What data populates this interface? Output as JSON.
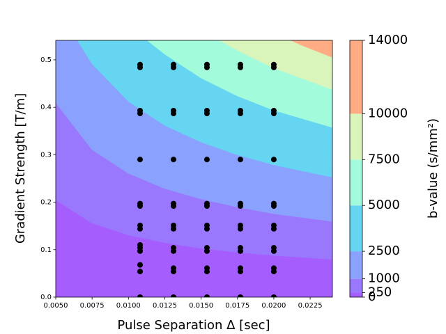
{
  "chart_data": {
    "type": "contour",
    "xlabel": "Pulse Separation Δ [sec]",
    "ylabel": "Gradient Strength [T/m]",
    "xlim": [
      0.005,
      0.02403
    ],
    "ylim": [
      0,
      0.541
    ],
    "xticks": [
      {
        "value": 0.005,
        "label": "0.0050"
      },
      {
        "value": 0.0075,
        "label": "0.0075"
      },
      {
        "value": 0.01,
        "label": "0.0100"
      },
      {
        "value": 0.0125,
        "label": "0.0125"
      },
      {
        "value": 0.015,
        "label": "0.0150"
      },
      {
        "value": 0.0175,
        "label": "0.0175"
      },
      {
        "value": 0.02,
        "label": "0.0200"
      },
      {
        "value": 0.0225,
        "label": "0.0225"
      }
    ],
    "yticks": [
      {
        "value": 0,
        "label": "0.0"
      },
      {
        "value": 0.1,
        "label": "0.1"
      },
      {
        "value": 0.2,
        "label": "0.2"
      },
      {
        "value": 0.3,
        "label": "0.3"
      },
      {
        "value": 0.4,
        "label": "0.4"
      },
      {
        "value": 0.5,
        "label": "0.5"
      }
    ],
    "levels": [
      0,
      250,
      1000,
      2500,
      5000,
      7500,
      10000,
      14000
    ],
    "colors": [
      "#a65dfe",
      "#9a78fd",
      "#8aa2fe",
      "#66d5f1",
      "#a2fbdb",
      "#d9f5bb",
      "#ffab84"
    ],
    "boundaries": [
      {
        "x": [
          0.005,
          0.0075,
          0.01,
          0.0125,
          0.015,
          0.0175,
          0.02,
          0.024
        ],
        "y": [
          0.205,
          0.156,
          0.131,
          0.115,
          0.103,
          0.095,
          0.088,
          0.08
        ]
      },
      {
        "x": [
          0.005,
          0.0075,
          0.01,
          0.0125,
          0.015,
          0.0175,
          0.02,
          0.024
        ],
        "y": [
          0.41,
          0.311,
          0.261,
          0.229,
          0.207,
          0.19,
          0.176,
          0.16
        ]
      },
      {
        "x": [
          0.0065,
          0.0075,
          0.01,
          0.0125,
          0.015,
          0.0175,
          0.02,
          0.024
        ],
        "y": [
          0.541,
          0.492,
          0.413,
          0.362,
          0.327,
          0.3,
          0.279,
          0.253
        ]
      },
      {
        "x": [
          0.0113,
          0.0125,
          0.015,
          0.0175,
          0.02,
          0.024
        ],
        "y": [
          0.541,
          0.512,
          0.462,
          0.424,
          0.394,
          0.358
        ]
      },
      {
        "x": [
          0.0163,
          0.0175,
          0.02,
          0.024
        ],
        "y": [
          0.541,
          0.52,
          0.483,
          0.438
        ]
      },
      {
        "x": [
          0.0212,
          0.022,
          0.024
        ],
        "y": [
          0.541,
          0.53,
          0.506
        ]
      }
    ],
    "points": {
      "color": "#000000",
      "x": [
        0.0108,
        0.0108,
        0.0108,
        0.0108,
        0.0108,
        0.0108,
        0.0108,
        0.0108,
        0.0108,
        0.0108,
        0.0108,
        0.0108,
        0.0108,
        0.0108,
        0.0108,
        0.0131,
        0.0131,
        0.0131,
        0.0131,
        0.0131,
        0.0131,
        0.0131,
        0.0131,
        0.0131,
        0.0131,
        0.0131,
        0.0131,
        0.0131,
        0.0131,
        0.0154,
        0.0154,
        0.0154,
        0.0154,
        0.0154,
        0.0154,
        0.0154,
        0.0154,
        0.0154,
        0.0154,
        0.0154,
        0.0154,
        0.0154,
        0.0154,
        0.0177,
        0.0177,
        0.0177,
        0.0177,
        0.0177,
        0.0177,
        0.0177,
        0.0177,
        0.0177,
        0.0177,
        0.0177,
        0.0177,
        0.0177,
        0.0177,
        0.02,
        0.02,
        0.02,
        0.02,
        0.02,
        0.02,
        0.02,
        0.02,
        0.02,
        0.02,
        0.02,
        0.02,
        0.02,
        0.02
      ],
      "y": [
        0,
        0.054,
        0.068,
        0.097,
        0.104,
        0.144,
        0.151,
        0.192,
        0.197,
        0.29,
        0.387,
        0.393,
        0.484,
        0.49,
        0.11,
        0,
        0.054,
        0.061,
        0.097,
        0.104,
        0.144,
        0.151,
        0.192,
        0.197,
        0.29,
        0.387,
        0.393,
        0.484,
        0.49,
        0,
        0.054,
        0.061,
        0.097,
        0.104,
        0.144,
        0.151,
        0.192,
        0.197,
        0.29,
        0.387,
        0.393,
        0.484,
        0.49,
        0,
        0.054,
        0.061,
        0.097,
        0.104,
        0.144,
        0.151,
        0.192,
        0.197,
        0.29,
        0.387,
        0.393,
        0.484,
        0.49,
        0,
        0.054,
        0.061,
        0.097,
        0.104,
        0.144,
        0.151,
        0.192,
        0.197,
        0.29,
        0.387,
        0.393,
        0.484,
        0.49
      ]
    },
    "colorbar_label": "b-value (s/mm²)"
  }
}
